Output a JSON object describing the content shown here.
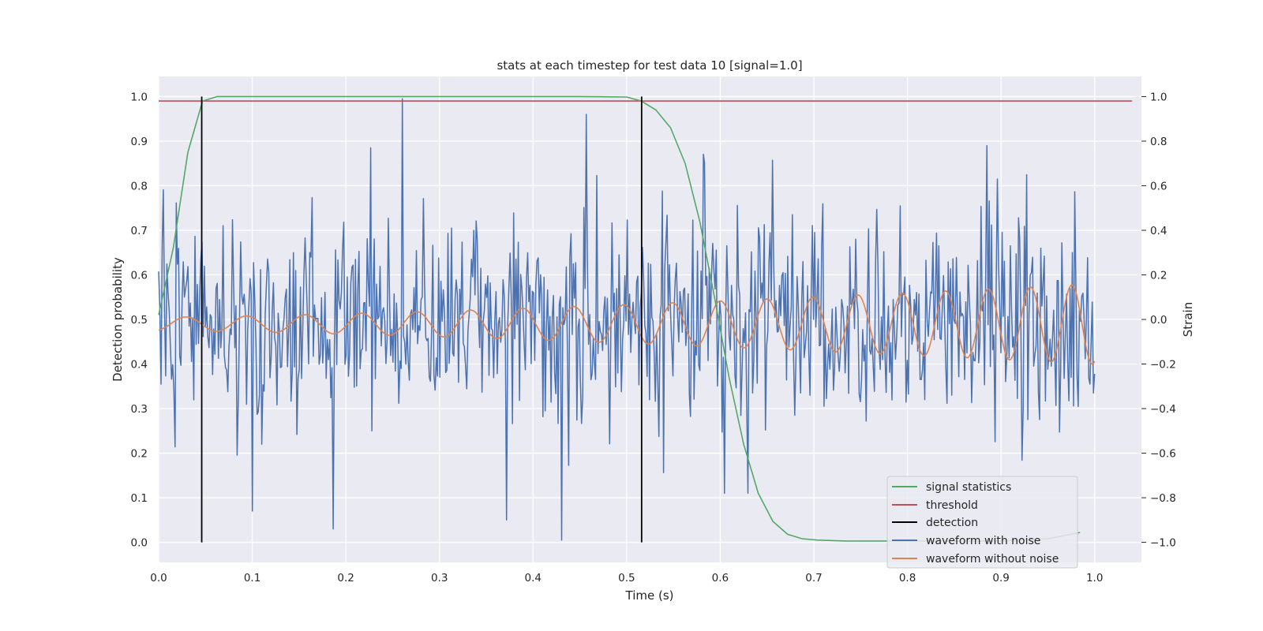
{
  "chart_data": {
    "type": "line",
    "title": "stats at each timestep for test data 10 [signal=1.0]",
    "xlabel": "Time (s)",
    "ylabel": "Detection probability",
    "y2label": "Strain",
    "xlim": [
      0.0,
      1.05
    ],
    "ylim": [
      -0.045,
      1.045
    ],
    "y2lim": [
      -1.09,
      1.09
    ],
    "xticks": [
      "0.0",
      "0.1",
      "0.2",
      "0.3",
      "0.4",
      "0.5",
      "0.6",
      "0.7",
      "0.8",
      "0.9",
      "1.0"
    ],
    "yticks": [
      "0.0",
      "0.1",
      "0.2",
      "0.3",
      "0.4",
      "0.5",
      "0.6",
      "0.7",
      "0.8",
      "0.9",
      "1.0"
    ],
    "y2ticks": [
      "−1.0",
      "−0.8",
      "−0.6",
      "−0.4",
      "−0.2",
      "0.0",
      "0.2",
      "0.4",
      "0.6",
      "0.8",
      "1.0"
    ],
    "grid": true,
    "legend_position": "lower-right",
    "legend": [
      {
        "label": "signal statistics",
        "color": "#55a868"
      },
      {
        "label": "threshold",
        "color": "#c44e52"
      },
      {
        "label": "detection",
        "color": "#000000"
      },
      {
        "label": "waveform with noise",
        "color": "#4c72b0"
      },
      {
        "label": "waveform without noise",
        "color": "#dd8452"
      }
    ],
    "signal_statistics": {
      "color": "#55a868",
      "x": [
        0.0,
        0.0156,
        0.0312,
        0.0469,
        0.0625,
        0.0781,
        0.0938,
        0.1094,
        0.125,
        0.2,
        0.3,
        0.4,
        0.45,
        0.5,
        0.5156,
        0.5312,
        0.5469,
        0.5625,
        0.5781,
        0.5938,
        0.6094,
        0.625,
        0.6406,
        0.6562,
        0.6719,
        0.6875,
        0.7031,
        0.7188,
        0.7344,
        0.75,
        0.8,
        0.9,
        0.95,
        0.9844
      ],
      "y": [
        0.51,
        0.66,
        0.875,
        0.99,
        1.0,
        1.0,
        1.0,
        1.0,
        1.0,
        1.0,
        1.0,
        1.0,
        1.0,
        0.999,
        0.99,
        0.97,
        0.93,
        0.85,
        0.72,
        0.55,
        0.37,
        0.22,
        0.11,
        0.047,
        0.018,
        0.008,
        0.005,
        0.004,
        0.003,
        0.003,
        0.003,
        0.003,
        0.008,
        0.022
      ]
    },
    "threshold": {
      "color": "#c44e52",
      "value": 0.99,
      "x_range": [
        0.0,
        1.04
      ]
    },
    "detections": {
      "color": "#000000",
      "x": [
        0.046,
        0.516
      ],
      "y_range": [
        0.0,
        1.0
      ]
    },
    "waveform_with_noise": {
      "color": "#4c72b0",
      "x_range": [
        0.0,
        1.0
      ],
      "samples": 800,
      "seed": 10,
      "noise_std": 0.23,
      "spikes": [
        {
          "x": 0.26,
          "y": 0.99
        },
        {
          "x": 0.431,
          "y": -0.99
        },
        {
          "x": 0.457,
          "y": 0.92
        },
        {
          "x": 0.1,
          "y": -0.86
        },
        {
          "x": 0.187,
          "y": -0.94
        },
        {
          "x": 0.372,
          "y": -0.9
        },
        {
          "x": 0.227,
          "y": 0.77
        },
        {
          "x": 0.63,
          "y": -0.78
        },
        {
          "x": 0.885,
          "y": 0.78
        },
        {
          "x": 0.604,
          "y": -0.78
        }
      ]
    },
    "waveform_without_noise": {
      "color": "#dd8452",
      "x_range": [
        0.0,
        1.0
      ],
      "samples": 800,
      "offset": -0.02,
      "amp_start": 0.03,
      "amp_end": 0.18,
      "freq_start_hz": 15,
      "freq_end_hz": 23
    }
  }
}
